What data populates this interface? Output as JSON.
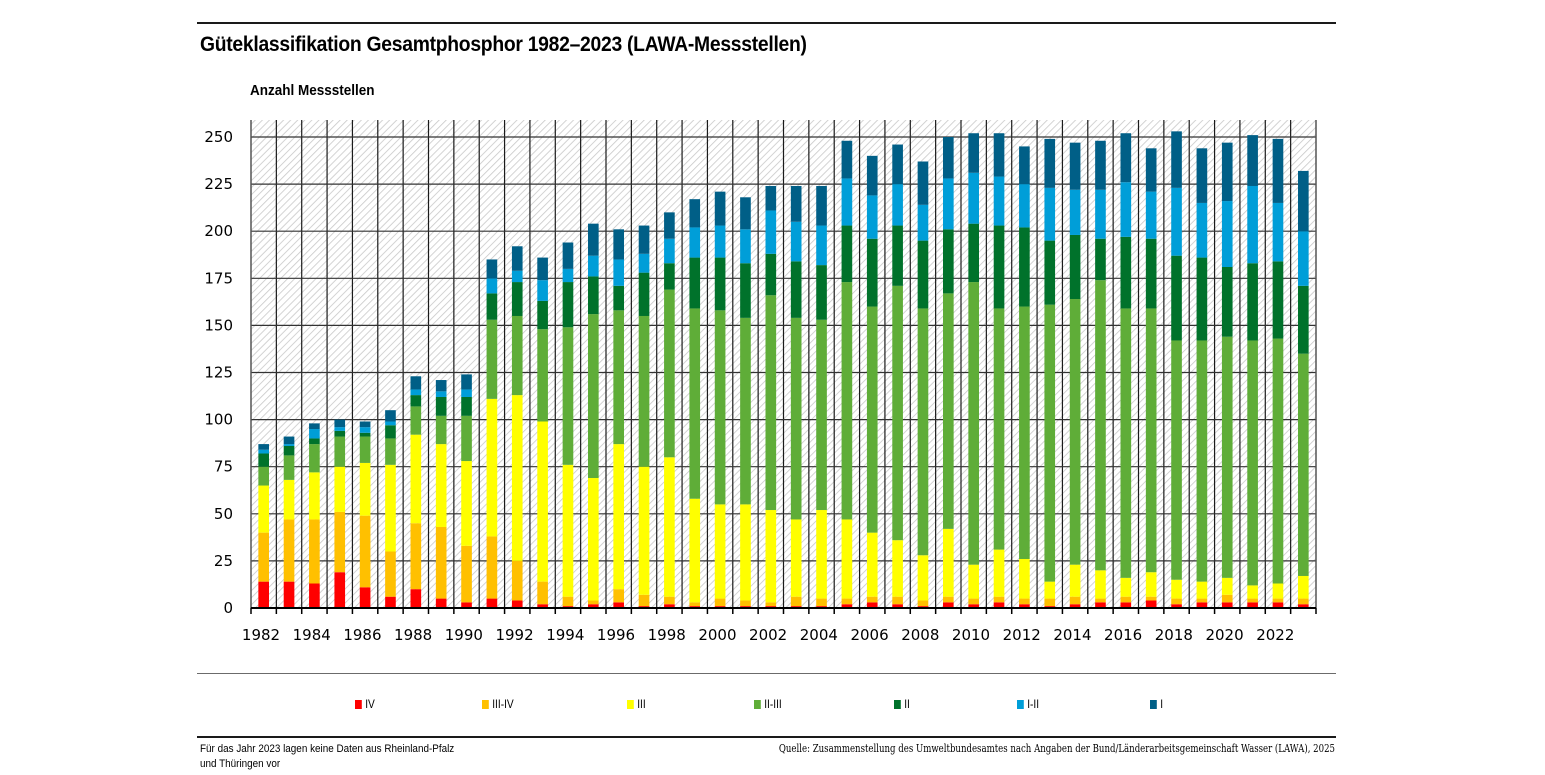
{
  "chart_data": {
    "type": "bar",
    "stacked": true,
    "title": "Güteklassifikation Gesamtphosphor 1982–2023 (LAWA-Messstellen)",
    "ylabel": "Anzahl Messstellen",
    "xlabel": "",
    "ylim": [
      0,
      260
    ],
    "yticks": [
      0,
      25,
      50,
      75,
      100,
      125,
      150,
      175,
      200,
      225,
      250
    ],
    "xtick_labels": [
      "1982",
      "1984",
      "1986",
      "1988",
      "1990",
      "1992",
      "1994",
      "1996",
      "1998",
      "2000",
      "2002",
      "2004",
      "2006",
      "2008",
      "2010",
      "2012",
      "2014",
      "2016",
      "2018",
      "2020",
      "2022"
    ],
    "grid": true,
    "legend_position": "bottom",
    "categories": [
      "1982",
      "1983",
      "1984",
      "1985",
      "1986",
      "1987",
      "1988",
      "1989",
      "1990",
      "1991",
      "1992",
      "1993",
      "1994",
      "1995",
      "1996",
      "1997",
      "1998",
      "1999",
      "2000",
      "2001",
      "2002",
      "2003",
      "2004",
      "2005",
      "2006",
      "2007",
      "2008",
      "2009",
      "2010",
      "2011",
      "2012",
      "2013",
      "2014",
      "2015",
      "2016",
      "2017",
      "2018",
      "2019",
      "2020",
      "2021",
      "2022",
      "2023"
    ],
    "series": [
      {
        "name": "IV",
        "color": "#ff0000",
        "values": [
          14,
          14,
          13,
          19,
          11,
          6,
          10,
          5,
          3,
          5,
          4,
          2,
          1,
          2,
          3,
          1,
          2,
          1,
          1,
          1,
          1,
          1,
          1,
          2,
          3,
          2,
          1,
          3,
          2,
          3,
          2,
          1,
          2,
          3,
          3,
          4,
          2,
          3,
          3,
          3,
          3,
          2
        ]
      },
      {
        "name": "III-IV",
        "color": "#ffc000",
        "values": [
          26,
          33,
          34,
          32,
          38,
          24,
          35,
          38,
          30,
          33,
          21,
          12,
          5,
          2,
          7,
          6,
          4,
          2,
          4,
          3,
          2,
          5,
          4,
          3,
          3,
          4,
          3,
          3,
          3,
          3,
          3,
          4,
          4,
          2,
          3,
          2,
          3,
          2,
          4,
          2,
          2,
          3
        ]
      },
      {
        "name": "III",
        "color": "#ffff00",
        "values": [
          25,
          21,
          25,
          24,
          28,
          46,
          47,
          44,
          45,
          73,
          88,
          85,
          70,
          65,
          77,
          68,
          74,
          55,
          50,
          51,
          49,
          41,
          47,
          42,
          34,
          30,
          24,
          36,
          18,
          25,
          21,
          9,
          17,
          15,
          10,
          13,
          10,
          9,
          9,
          7,
          8,
          12
        ]
      },
      {
        "name": "II-III",
        "color": "#5fad38",
        "values": [
          10,
          13,
          15,
          16,
          14,
          14,
          15,
          15,
          24,
          42,
          42,
          49,
          73,
          87,
          71,
          80,
          89,
          101,
          103,
          99,
          114,
          107,
          101,
          126,
          120,
          135,
          131,
          125,
          150,
          128,
          134,
          147,
          141,
          154,
          143,
          140,
          127,
          128,
          128,
          130,
          130,
          118
        ]
      },
      {
        "name": "II",
        "color": "#00722b",
        "values": [
          7,
          5,
          3,
          3,
          2,
          7,
          6,
          10,
          10,
          14,
          18,
          15,
          24,
          20,
          13,
          23,
          14,
          27,
          28,
          29,
          22,
          30,
          29,
          30,
          36,
          32,
          36,
          34,
          31,
          44,
          42,
          34,
          34,
          22,
          38,
          37,
          45,
          44,
          37,
          41,
          41,
          36
        ]
      },
      {
        "name": "I-II",
        "color": "#009ed8",
        "values": [
          2,
          1,
          5,
          2,
          3,
          2,
          3,
          3,
          4,
          8,
          6,
          11,
          7,
          11,
          14,
          10,
          13,
          16,
          17,
          18,
          23,
          21,
          21,
          25,
          23,
          22,
          19,
          27,
          27,
          26,
          23,
          28,
          24,
          26,
          29,
          25,
          36,
          29,
          35,
          41,
          31,
          29
        ]
      },
      {
        "name": "I",
        "color": "#005f87",
        "values": [
          3,
          4,
          3,
          4,
          3,
          6,
          7,
          6,
          8,
          10,
          13,
          12,
          14,
          17,
          16,
          15,
          14,
          15,
          18,
          17,
          13,
          19,
          21,
          20,
          21,
          21,
          23,
          22,
          21,
          23,
          20,
          26,
          25,
          26,
          26,
          23,
          30,
          29,
          31,
          27,
          34,
          32
        ]
      }
    ]
  },
  "header": {
    "title": "Güteklassifikation Gesamtphosphor 1982–2023 (LAWA-Messstellen)",
    "y_axis_label": "Anzahl Messstellen"
  },
  "legend": [
    {
      "label": "IV",
      "color": "#ff0000"
    },
    {
      "label": "III-IV",
      "color": "#ffc000"
    },
    {
      "label": "III",
      "color": "#ffff00"
    },
    {
      "label": "II-III",
      "color": "#5fad38"
    },
    {
      "label": "II",
      "color": "#00722b"
    },
    {
      "label": "I-II",
      "color": "#009ed8"
    },
    {
      "label": "I",
      "color": "#005f87"
    }
  ],
  "footer": {
    "note_line1": "Für das Jahr 2023 lagen keine Daten aus Rheinland-Pfalz",
    "note_line2": "und Thüringen vor",
    "source": "Quelle: Zusammenstellung des Umweltbundesamtes nach Angaben der Bund/Länderarbeitsgemeinschaft Wasser (LAWA), 2025"
  }
}
